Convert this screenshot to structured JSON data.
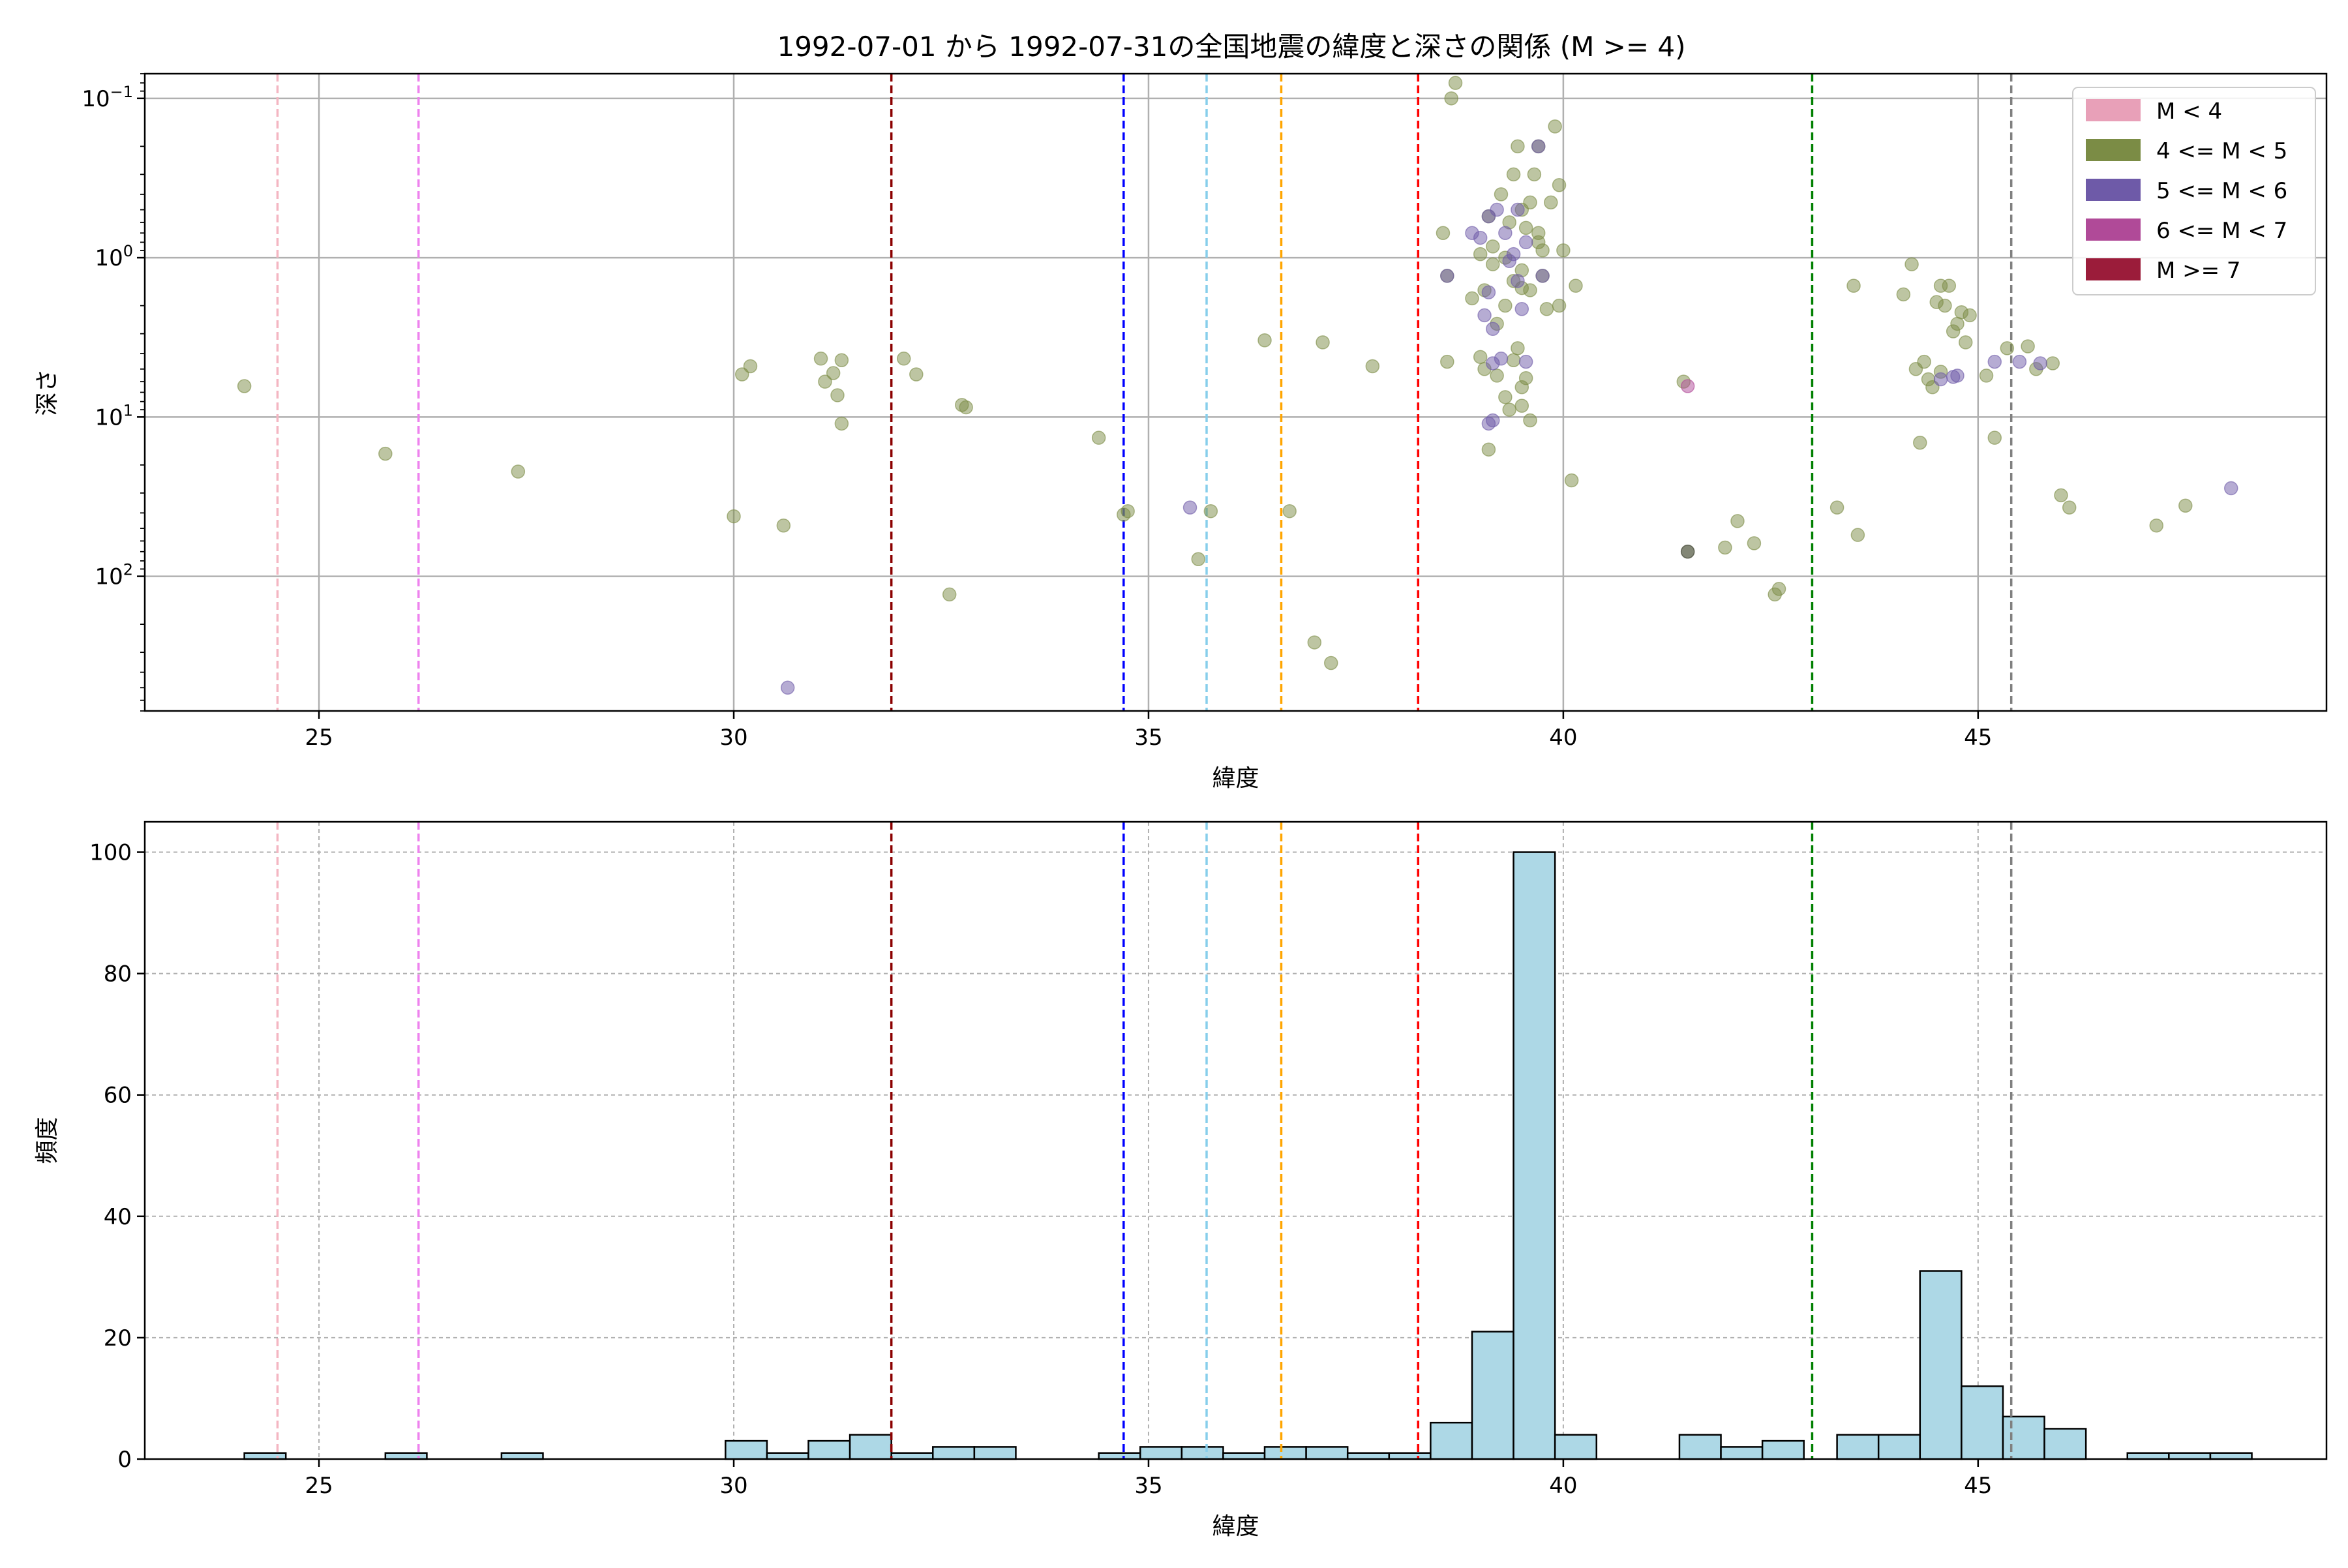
{
  "title": "1992-07-01 から 1992-07-31の全国地震の緯度と深さの関係 (M >= 4)",
  "chart_data": [
    {
      "type": "scatter",
      "xlabel": "緯度",
      "ylabel": "深さ",
      "xlim": [
        22.9,
        49.2
      ],
      "ylim": [
        700,
        0.07
      ],
      "y_scale": "log",
      "y_inverted": true,
      "grid": true,
      "x_ticks": [
        25,
        30,
        35,
        40,
        45
      ],
      "y_ticks": [
        {
          "value": 0.1,
          "base": "10",
          "exp": "−1"
        },
        {
          "value": 1,
          "base": "10",
          "exp": "0"
        },
        {
          "value": 10,
          "base": "10",
          "exp": "1"
        },
        {
          "value": 100,
          "base": "10",
          "exp": "2"
        }
      ],
      "legend": {
        "position": "top-right",
        "items": [
          {
            "label": "M < 4",
            "color": "#e8a0b8"
          },
          {
            "label": "4 <= M < 5",
            "color": "#7b8c45"
          },
          {
            "label": "5 <= M < 6",
            "color": "#6e5aa8"
          },
          {
            "label": "6 <= M < 7",
            "color": "#b04a98"
          },
          {
            "label": "M >= 7",
            "color": "#9b1c3a"
          }
        ]
      },
      "vlines": [
        {
          "x": 24.5,
          "color": "#f4b6c2"
        },
        {
          "x": 26.2,
          "color": "#ee82ee"
        },
        {
          "x": 31.9,
          "color": "#8b0000"
        },
        {
          "x": 34.7,
          "color": "#0000ff"
        },
        {
          "x": 35.7,
          "color": "#87ceeb"
        },
        {
          "x": 36.6,
          "color": "#ffa500"
        },
        {
          "x": 38.25,
          "color": "#ff0000"
        },
        {
          "x": 43.0,
          "color": "#008000"
        },
        {
          "x": 45.4,
          "color": "#808080"
        }
      ],
      "series": [
        {
          "color": "#7b8c45",
          "points": [
            [
              24.1,
              6.4
            ],
            [
              25.8,
              17
            ],
            [
              27.4,
              22
            ],
            [
              30.0,
              42
            ],
            [
              30.1,
              5.4
            ],
            [
              30.2,
              4.8
            ],
            [
              30.6,
              48
            ],
            [
              31.05,
              4.3
            ],
            [
              31.1,
              6.0
            ],
            [
              31.2,
              5.3
            ],
            [
              31.25,
              7.3
            ],
            [
              31.3,
              4.4
            ],
            [
              31.3,
              11
            ],
            [
              32.05,
              4.3
            ],
            [
              32.2,
              5.4
            ],
            [
              32.6,
              130
            ],
            [
              32.75,
              8.4
            ],
            [
              32.8,
              8.7
            ],
            [
              34.4,
              13.5
            ],
            [
              34.7,
              41
            ],
            [
              34.75,
              39
            ],
            [
              35.6,
              78
            ],
            [
              35.75,
              39
            ],
            [
              36.4,
              3.3
            ],
            [
              36.7,
              39
            ],
            [
              37.0,
              260
            ],
            [
              37.1,
              3.4
            ],
            [
              37.2,
              350
            ],
            [
              37.7,
              4.8
            ],
            [
              38.55,
              0.7
            ],
            [
              38.6,
              1.3
            ],
            [
              38.6,
              4.5
            ],
            [
              38.65,
              0.1
            ],
            [
              38.7,
              0.08
            ],
            [
              38.9,
              1.8
            ],
            [
              39.0,
              0.95
            ],
            [
              39.05,
              1.6
            ],
            [
              39.1,
              0.55
            ],
            [
              39.15,
              0.85
            ],
            [
              39.15,
              1.1
            ],
            [
              39.2,
              2.6
            ],
            [
              39.25,
              0.4
            ],
            [
              39.3,
              1.0
            ],
            [
              39.3,
              2.0
            ],
            [
              39.35,
              0.6
            ],
            [
              39.4,
              0.3
            ],
            [
              39.4,
              1.4
            ],
            [
              39.45,
              0.2
            ],
            [
              39.5,
              0.5
            ],
            [
              39.5,
              1.2
            ],
            [
              39.55,
              0.65
            ],
            [
              39.6,
              1.6
            ],
            [
              39.65,
              0.3
            ],
            [
              39.7,
              0.2
            ],
            [
              39.7,
              0.8
            ],
            [
              39.75,
              1.3
            ],
            [
              39.8,
              2.1
            ],
            [
              39.85,
              0.45
            ],
            [
              39.9,
              0.15
            ],
            [
              39.95,
              0.35
            ],
            [
              40.0,
              0.9
            ],
            [
              39.95,
              2.0
            ],
            [
              39.0,
              4.2
            ],
            [
              39.05,
              5.0
            ],
            [
              39.1,
              16
            ],
            [
              39.2,
              5.5
            ],
            [
              39.3,
              7.5
            ],
            [
              39.4,
              4.4
            ],
            [
              39.45,
              3.7
            ],
            [
              39.5,
              8.5
            ],
            [
              39.55,
              5.7
            ],
            [
              39.35,
              9.0
            ],
            [
              39.5,
              6.5
            ],
            [
              39.6,
              10.5
            ],
            [
              39.5,
              1.55
            ],
            [
              39.6,
              0.45
            ],
            [
              39.7,
              0.7
            ],
            [
              39.75,
              0.9
            ],
            [
              40.15,
              1.5
            ],
            [
              40.1,
              25
            ],
            [
              41.45,
              6.0
            ],
            [
              41.5,
              70
            ],
            [
              41.95,
              66
            ],
            [
              42.1,
              45
            ],
            [
              42.3,
              62
            ],
            [
              42.55,
              130
            ],
            [
              42.6,
              120
            ],
            [
              43.3,
              37
            ],
            [
              43.5,
              1.5
            ],
            [
              43.55,
              55
            ],
            [
              44.1,
              1.7
            ],
            [
              44.2,
              1.1
            ],
            [
              44.25,
              5.0
            ],
            [
              44.3,
              14.5
            ],
            [
              44.35,
              4.5
            ],
            [
              44.4,
              5.8
            ],
            [
              44.45,
              6.5
            ],
            [
              44.5,
              1.9
            ],
            [
              44.55,
              5.2
            ],
            [
              44.6,
              2.0
            ],
            [
              44.65,
              1.5
            ],
            [
              44.7,
              2.9
            ],
            [
              44.75,
              2.6
            ],
            [
              44.8,
              2.2
            ],
            [
              44.85,
              3.4
            ],
            [
              44.9,
              2.3
            ],
            [
              45.1,
              5.5
            ],
            [
              45.2,
              13.5
            ],
            [
              45.35,
              3.7
            ],
            [
              45.6,
              3.6
            ],
            [
              45.7,
              5.0
            ],
            [
              45.9,
              4.6
            ],
            [
              46.0,
              31
            ],
            [
              46.1,
              37
            ],
            [
              47.15,
              48
            ],
            [
              47.5,
              36
            ],
            [
              44.55,
              1.5
            ]
          ]
        },
        {
          "color": "#6e5aa8",
          "points": [
            [
              30.65,
              500
            ],
            [
              35.5,
              37
            ],
            [
              38.6,
              1.3
            ],
            [
              38.9,
              0.7
            ],
            [
              39.0,
              0.75
            ],
            [
              39.05,
              2.3
            ],
            [
              39.1,
              0.55
            ],
            [
              39.1,
              1.65
            ],
            [
              39.15,
              2.8
            ],
            [
              39.15,
              4.6
            ],
            [
              39.2,
              0.5
            ],
            [
              39.25,
              4.3
            ],
            [
              39.3,
              0.7
            ],
            [
              39.35,
              1.05
            ],
            [
              39.4,
              0.95
            ],
            [
              39.45,
              0.5
            ],
            [
              39.45,
              1.4
            ],
            [
              39.5,
              2.1
            ],
            [
              39.55,
              0.8
            ],
            [
              39.55,
              4.5
            ],
            [
              39.7,
              0.2
            ],
            [
              39.75,
              1.3
            ],
            [
              39.1,
              11
            ],
            [
              39.15,
              10.5
            ],
            [
              44.55,
              5.8
            ],
            [
              44.7,
              5.6
            ],
            [
              44.75,
              5.5
            ],
            [
              45.2,
              4.5
            ],
            [
              45.5,
              4.5
            ],
            [
              45.75,
              4.6
            ],
            [
              48.05,
              28
            ]
          ]
        },
        {
          "color": "#b04a98",
          "points": [
            [
              41.5,
              6.4
            ]
          ]
        },
        {
          "color": "#4a4a4a",
          "points": [
            [
              41.5,
              70
            ]
          ]
        }
      ]
    },
    {
      "type": "bar",
      "xlabel": "緯度",
      "ylabel": "頻度",
      "xlim": [
        22.9,
        49.2
      ],
      "ylim": [
        0,
        105
      ],
      "grid": true,
      "x_ticks": [
        25,
        30,
        35,
        40,
        45
      ],
      "y_ticks": [
        0,
        20,
        40,
        60,
        80,
        100
      ],
      "bar_color": "#add8e6",
      "bins": [
        [
          24.1,
          24.6,
          1
        ],
        [
          25.8,
          26.3,
          1
        ],
        [
          27.2,
          27.7,
          1
        ],
        [
          29.9,
          30.4,
          3
        ],
        [
          30.4,
          30.9,
          1
        ],
        [
          30.9,
          31.4,
          3
        ],
        [
          31.4,
          31.9,
          4
        ],
        [
          31.9,
          32.4,
          1
        ],
        [
          32.4,
          32.9,
          2
        ],
        [
          32.9,
          33.4,
          2
        ],
        [
          34.4,
          34.9,
          1
        ],
        [
          34.9,
          35.4,
          2
        ],
        [
          35.4,
          35.9,
          2
        ],
        [
          35.9,
          36.4,
          1
        ],
        [
          36.4,
          36.9,
          2
        ],
        [
          36.9,
          37.4,
          2
        ],
        [
          37.4,
          37.9,
          1
        ],
        [
          37.9,
          38.4,
          1
        ],
        [
          38.4,
          38.9,
          6
        ],
        [
          38.9,
          39.4,
          21
        ],
        [
          39.4,
          39.9,
          100
        ],
        [
          39.9,
          40.4,
          4
        ],
        [
          41.4,
          41.9,
          4
        ],
        [
          41.9,
          42.4,
          2
        ],
        [
          42.4,
          42.9,
          3
        ],
        [
          43.3,
          43.8,
          4
        ],
        [
          43.8,
          44.3,
          4
        ],
        [
          44.3,
          44.8,
          31
        ],
        [
          44.8,
          45.3,
          12
        ],
        [
          45.3,
          45.8,
          7
        ],
        [
          45.8,
          46.3,
          5
        ],
        [
          46.8,
          47.3,
          1
        ],
        [
          47.3,
          47.8,
          1
        ],
        [
          47.8,
          48.3,
          1
        ]
      ],
      "vlines": [
        {
          "x": 24.5,
          "color": "#f4b6c2"
        },
        {
          "x": 26.2,
          "color": "#ee82ee"
        },
        {
          "x": 31.9,
          "color": "#8b0000"
        },
        {
          "x": 34.7,
          "color": "#0000ff"
        },
        {
          "x": 35.7,
          "color": "#87ceeb"
        },
        {
          "x": 36.6,
          "color": "#ffa500"
        },
        {
          "x": 38.25,
          "color": "#ff0000"
        },
        {
          "x": 43.0,
          "color": "#008000"
        },
        {
          "x": 45.4,
          "color": "#808080"
        }
      ]
    }
  ]
}
